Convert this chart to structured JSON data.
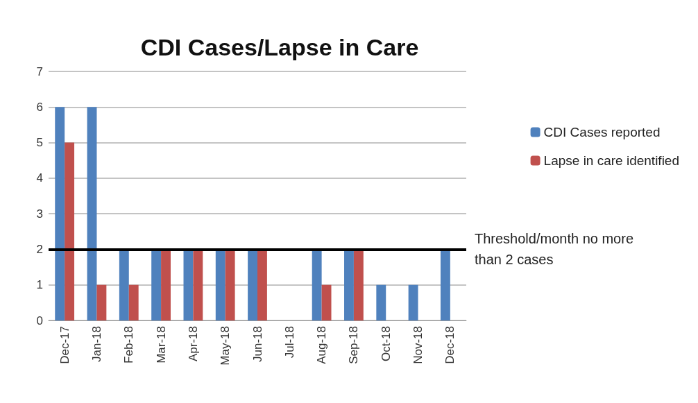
{
  "chart_data": {
    "type": "bar",
    "title": "CDI Cases/Lapse in Care",
    "categories": [
      "Dec-17",
      "Jan-18",
      "Feb-18",
      "Mar-18",
      "Apr-18",
      "May-18",
      "Jun-18",
      "Jul-18",
      "Aug-18",
      "Sep-18",
      "Oct-18",
      "Nov-18",
      "Dec-18"
    ],
    "series": [
      {
        "name": "CDI Cases reported",
        "color": "#4f81bd",
        "values": [
          6,
          6,
          2,
          2,
          2,
          2,
          2,
          0,
          2,
          2,
          1,
          1,
          2
        ]
      },
      {
        "name": "Lapse in care identified",
        "color": "#c0504d",
        "values": [
          5,
          1,
          1,
          2,
          2,
          2,
          2,
          0,
          1,
          2,
          0,
          0,
          0
        ]
      }
    ],
    "ylim": [
      0,
      7
    ],
    "yticks": [
      0,
      1,
      2,
      3,
      4,
      5,
      6,
      7
    ],
    "grid": "y",
    "legend": "right",
    "ref_lines": [
      {
        "axis": "y",
        "value": 2,
        "label": "Threshold/month no more than 2 cases",
        "color": "#000000"
      }
    ]
  }
}
